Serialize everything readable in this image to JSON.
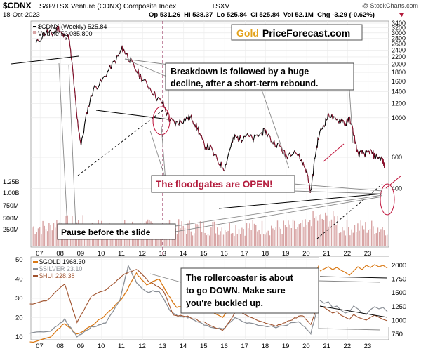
{
  "header": {
    "ticker": "$CDNX",
    "name": "S&P/TSX Venture (CDNX) Composite Index",
    "exchange": "TSXV",
    "credit": "@ StockCharts.com",
    "date": "18-Oct-2023",
    "stats": "Op 531.26  Hi 538.37  Lo 525.84  Cl 525.84  Vol 52.1M  Chg -3.29 (-0.62%)"
  },
  "brand": {
    "gold": "Gold",
    "rest": "PriceForecast.com"
  },
  "top_legend": {
    "series": "$CDNX (Weekly) 525.84",
    "volume": "Volume 52,085,800"
  },
  "bottom_legend": {
    "gold": "$GOLD 1968.30",
    "silver": "$SILVER 23.10",
    "hui": "$HUI 228.38"
  },
  "annotations": {
    "breakdown": [
      "Breakdown is followed by a huge",
      "decline, after a short-term rebound."
    ],
    "floodgates": "The floodgates are OPEN!",
    "pause": "Pause before the slide",
    "rollercoaster": [
      "The rollercoaster is about",
      "to go DOWN. Make sure",
      "you're buckled up."
    ]
  },
  "colors": {
    "gold": "#d97814",
    "silver": "#8a8f96",
    "hui": "#a0522d",
    "volume": "#d8a5a5",
    "marker": "#8b1a4a",
    "floodgates": "#b31b3c",
    "brand_gold": "#e3a21a"
  },
  "chart_data": [
    {
      "type": "line",
      "title": "$CDNX S&P/TSX Venture (CDNX) Composite Index TSXV",
      "log_scale": true,
      "ylim": [
        200,
        3400
      ],
      "x_ticks": [
        "07",
        "08",
        "09",
        "10",
        "11",
        "12",
        "13",
        "14",
        "15",
        "16",
        "17",
        "18",
        "19",
        "20",
        "21",
        "22",
        "23"
      ],
      "y_ticks": [
        400,
        600,
        1000,
        1200,
        1400,
        1600,
        1800,
        2000,
        2200,
        2400,
        2600,
        2800,
        3000,
        3200,
        3400
      ],
      "volume_ticks": [
        "250M",
        "500M",
        "750M",
        "1.00B",
        "1.25B"
      ],
      "series": [
        {
          "name": "$CDNX (Weekly) 525.84",
          "x": [
            2006.8,
            2007.3,
            2007.6,
            2007.9,
            2008.1,
            2008.4,
            2008.6,
            2008.8,
            2009.0,
            2009.3,
            2009.6,
            2010.0,
            2010.4,
            2010.8,
            2011.0,
            2011.2,
            2011.5,
            2011.9,
            2012.3,
            2012.7,
            2013.0,
            2013.3,
            2013.6,
            2013.9,
            2014.2,
            2014.4,
            2014.7,
            2015.0,
            2015.3,
            2015.7,
            2016.0,
            2016.3,
            2016.5,
            2016.8,
            2017.0,
            2017.4,
            2017.8,
            2018.0,
            2018.3,
            2018.7,
            2019.0,
            2019.4,
            2019.8,
            2020.0,
            2020.2,
            2020.4,
            2020.6,
            2020.9,
            2021.1,
            2021.4,
            2021.7,
            2021.9,
            2022.1,
            2022.3,
            2022.5,
            2022.7,
            2022.9,
            2023.1,
            2023.3,
            2023.5,
            2023.7,
            2023.8
          ],
          "values": [
            2600,
            3050,
            2950,
            3200,
            2900,
            2850,
            1800,
            1000,
            700,
            1100,
            1450,
            1600,
            1900,
            2200,
            2450,
            2300,
            2000,
            1700,
            1500,
            1300,
            1200,
            980,
            930,
            960,
            1000,
            1000,
            860,
            700,
            680,
            560,
            520,
            700,
            780,
            760,
            800,
            760,
            820,
            840,
            740,
            690,
            610,
            660,
            560,
            500,
            380,
            600,
            800,
            950,
            1050,
            960,
            980,
            920,
            1000,
            800,
            620,
            640,
            620,
            650,
            610,
            600,
            580,
            526
          ]
        }
      ]
    },
    {
      "type": "line",
      "ylim": [
        10,
        50
      ],
      "right_ylim": [
        700,
        2100
      ],
      "x_ticks": [
        "07",
        "08",
        "09",
        "10",
        "11",
        "12",
        "13",
        "14",
        "15",
        "16",
        "17",
        "18",
        "19",
        "20",
        "21",
        "22",
        "23"
      ],
      "y_ticks": [
        10,
        20,
        30,
        40,
        50
      ],
      "right_y_ticks": [
        750,
        1000,
        1250,
        1500,
        1750,
        2000
      ],
      "series": [
        {
          "name": "$GOLD 1968.30",
          "x": [
            2006.5,
            2007.5,
            2008.2,
            2008.8,
            2009.5,
            2010.2,
            2011.0,
            2011.7,
            2012.2,
            2012.8,
            2013.2,
            2013.6,
            2014.0,
            2014.5,
            2015.0,
            2015.9,
            2016.5,
            2017.0,
            2017.8,
            2018.5,
            2019.0,
            2019.6,
            2020.0,
            2020.6
          ],
          "values": [
            600,
            700,
            950,
            750,
            900,
            1100,
            1400,
            1850,
            1650,
            1750,
            1500,
            1250,
            1250,
            1300,
            1250,
            1050,
            1350,
            1150,
            1300,
            1200,
            1300,
            1500,
            1580,
            2000
          ]
        },
        {
          "name": "$SILVER 23.10",
          "x": [
            2006.5,
            2007.5,
            2008.2,
            2008.8,
            2009.5,
            2010.2,
            2010.9,
            2011.3,
            2011.7,
            2012.2,
            2012.8,
            2013.3,
            2013.7,
            2014.3,
            2015.0,
            2015.9,
            2016.5,
            2017.2,
            2018.5,
            2019.6,
            2020.2,
            2020.6
          ],
          "values": [
            12,
            13,
            19,
            10,
            15,
            17,
            29,
            47,
            38,
            33,
            34,
            24,
            21,
            20,
            16,
            14,
            20,
            17,
            15,
            18,
            12,
            28
          ]
        },
        {
          "name": "$HUI 228.38",
          "x": [
            2006.5,
            2007.3,
            2008.2,
            2008.8,
            2009.5,
            2010.3,
            2011.0,
            2011.7,
            2012.3,
            2013.0,
            2013.5,
            2014.2,
            2015.0,
            2015.9,
            2016.6,
            2017.5,
            2018.5,
            2019.2,
            2019.8,
            2020.2,
            2020.6
          ],
          "values": [
            330,
            360,
            500,
            180,
            400,
            460,
            570,
            620,
            520,
            450,
            240,
            230,
            180,
            110,
            280,
            200,
            150,
            200,
            240,
            160,
            350
          ]
        }
      ]
    }
  ]
}
